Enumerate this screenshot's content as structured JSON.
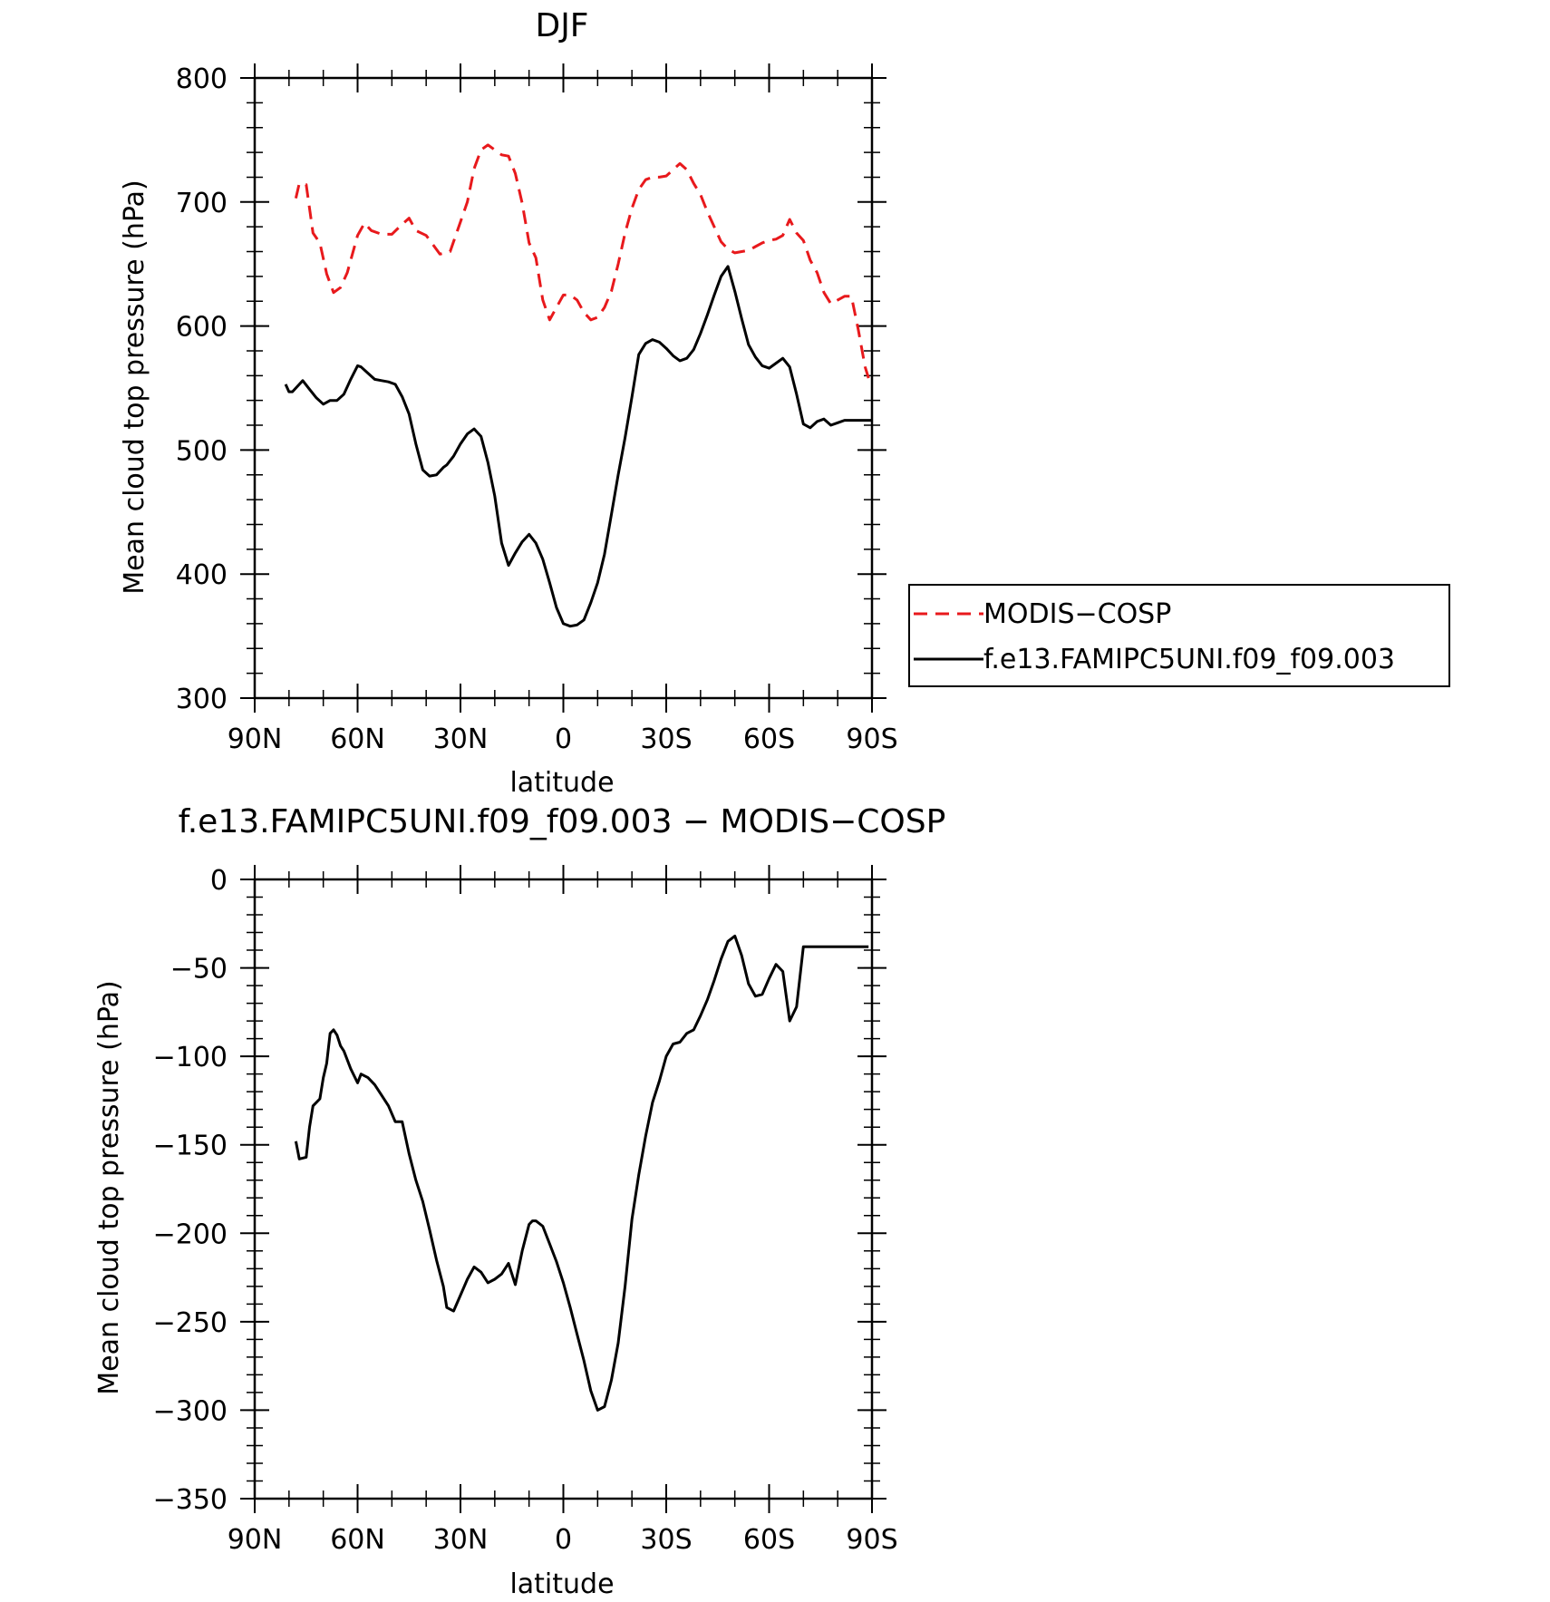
{
  "chart_data": [
    {
      "type": "line",
      "title": "DJF",
      "xlabel": "latitude",
      "ylabel": "Mean cloud top pressure (hPa)",
      "xlim": [
        -90,
        90
      ],
      "ylim": [
        300,
        800
      ],
      "x_ticks": [
        -90,
        -60,
        -30,
        0,
        30,
        60,
        90
      ],
      "x_tick_labels": [
        "90N",
        "60N",
        "30N",
        "0",
        "30S",
        "60S",
        "90S"
      ],
      "y_ticks": [
        300,
        400,
        500,
        600,
        700,
        800
      ],
      "y_tick_labels": [
        "300",
        "400",
        "500",
        "600",
        "700",
        "800"
      ],
      "grid": false,
      "legend": {
        "placement": "right",
        "entries": [
          "MODIS−COSP",
          "f.e13.FAMIPC5UNI.f09_f09.003"
        ]
      },
      "series": [
        {
          "name": "MODIS−COSP",
          "color": "#e8191c",
          "dash": "dashed",
          "x": [
            -78,
            -77,
            -75,
            -73,
            -71,
            -69,
            -67,
            -65,
            -63,
            -60,
            -58,
            -56,
            -53,
            -50,
            -47,
            -45,
            -43,
            -40,
            -36,
            -33,
            -30,
            -28,
            -26,
            -24,
            -22,
            -20,
            -18,
            -16,
            -14,
            -12,
            -10,
            -8,
            -6,
            -4,
            -2,
            0,
            2,
            4,
            6,
            8,
            10,
            12,
            14,
            16,
            18,
            20,
            22,
            24,
            26,
            28,
            30,
            32,
            34,
            36,
            38,
            40,
            42,
            44,
            46,
            48,
            50,
            52,
            54,
            56,
            58,
            60,
            62,
            64,
            66,
            68,
            70,
            72,
            74,
            76,
            78,
            80,
            82,
            84,
            86,
            88,
            89
          ],
          "y": [
            703,
            715,
            714,
            675,
            667,
            642,
            627,
            631,
            643,
            673,
            683,
            677,
            674,
            674,
            682,
            687,
            677,
            673,
            658,
            660,
            684,
            700,
            727,
            742,
            746,
            742,
            738,
            737,
            723,
            699,
            667,
            655,
            621,
            605,
            615,
            625,
            625,
            621,
            611,
            605,
            607,
            615,
            628,
            650,
            675,
            695,
            710,
            718,
            720,
            720,
            721,
            726,
            731,
            726,
            715,
            706,
            692,
            680,
            668,
            662,
            659,
            660,
            661,
            664,
            667,
            669,
            670,
            673,
            686,
            675,
            669,
            653,
            643,
            627,
            618,
            621,
            624,
            624,
            597,
            567,
            558
          ]
        },
        {
          "name": "f.e13.FAMIPC5UNI.f09_f09.003",
          "color": "#000000",
          "dash": "solid",
          "x": [
            -81,
            -80,
            -79,
            -77,
            -76,
            -74,
            -72,
            -70,
            -68,
            -66,
            -64,
            -62,
            -60,
            -59,
            -57,
            -55,
            -53,
            -51,
            -49,
            -47,
            -45,
            -43,
            -41,
            -39,
            -37,
            -35,
            -34,
            -32,
            -30,
            -28,
            -26,
            -24,
            -22,
            -20,
            -18,
            -16,
            -14,
            -12,
            -10,
            -8,
            -6,
            -4,
            -2,
            0,
            2,
            4,
            6,
            8,
            10,
            12,
            14,
            16,
            18,
            20,
            22,
            24,
            26,
            28,
            30,
            32,
            34,
            36,
            38,
            40,
            42,
            44,
            46,
            48,
            50,
            52,
            54,
            56,
            58,
            60,
            62,
            64,
            66,
            68,
            70,
            72,
            74,
            76,
            78,
            80,
            82,
            84,
            86,
            87,
            88,
            90
          ],
          "y": [
            553,
            547,
            547,
            553,
            556,
            549,
            542,
            537,
            540,
            540,
            545,
            557,
            568,
            567,
            562,
            557,
            556,
            555,
            553,
            543,
            529,
            505,
            484,
            479,
            480,
            486,
            488,
            495,
            505,
            513,
            517,
            511,
            490,
            463,
            425,
            407,
            417,
            426,
            432,
            425,
            412,
            393,
            373,
            360,
            358,
            359,
            363,
            377,
            393,
            416,
            448,
            480,
            510,
            543,
            577,
            586,
            589,
            587,
            582,
            576,
            572,
            574,
            581,
            594,
            609,
            625,
            640,
            648,
            628,
            606,
            585,
            575,
            568,
            566,
            570,
            574,
            567,
            545,
            521,
            518,
            523,
            525,
            520,
            522,
            524,
            524,
            524,
            524,
            524,
            524
          ]
        }
      ]
    },
    {
      "type": "line",
      "title": "f.e13.FAMIPC5UNI.f09_f09.003 − MODIS−COSP",
      "xlabel": "latitude",
      "ylabel": "Mean cloud top pressure (hPa)",
      "xlim": [
        -90,
        90
      ],
      "ylim": [
        -350,
        0
      ],
      "x_ticks": [
        -90,
        -60,
        -30,
        0,
        30,
        60,
        90
      ],
      "x_tick_labels": [
        "90N",
        "60N",
        "30N",
        "0",
        "30S",
        "60S",
        "90S"
      ],
      "y_ticks": [
        -350,
        -300,
        -250,
        -200,
        -150,
        -100,
        -50,
        0
      ],
      "y_tick_labels": [
        "−350",
        "−300",
        "−250",
        "−200",
        "−150",
        "−100",
        "−50",
        "0"
      ],
      "grid": false,
      "series": [
        {
          "color": "#000000",
          "dash": "solid",
          "x": [
            -78,
            -77,
            -75,
            -74,
            -73,
            -71,
            -70,
            -69,
            -68,
            -67,
            -66,
            -65,
            -64,
            -62,
            -60,
            -59,
            -57,
            -55,
            -53,
            -51,
            -49,
            -47,
            -45,
            -43,
            -41,
            -39,
            -37,
            -35,
            -34,
            -32,
            -30,
            -28,
            -26,
            -24,
            -22,
            -20,
            -18,
            -16,
            -14,
            -12,
            -10,
            -9,
            -8,
            -6,
            -4,
            -2,
            0,
            2,
            4,
            6,
            8,
            10,
            12,
            14,
            16,
            18,
            20,
            22,
            24,
            26,
            28,
            30,
            32,
            34,
            36,
            38,
            40,
            42,
            44,
            46,
            48,
            50,
            52,
            54,
            56,
            58,
            60,
            62,
            64,
            66,
            68,
            70,
            72,
            74,
            76,
            78,
            80,
            82,
            84,
            86,
            88,
            89
          ],
          "y": [
            -148,
            -158,
            -157,
            -140,
            -128,
            -124,
            -112,
            -104,
            -87,
            -85,
            -88,
            -94,
            -97,
            -107,
            -115,
            -110,
            -112,
            -116,
            -122,
            -128,
            -137,
            -137,
            -155,
            -170,
            -182,
            -198,
            -215,
            -230,
            -242,
            -244,
            -235,
            -226,
            -219,
            -222,
            -228,
            -226,
            -223,
            -217,
            -229,
            -210,
            -195,
            -193,
            -193,
            -196,
            -206,
            -216,
            -228,
            -242,
            -257,
            -272,
            -289,
            -300,
            -298,
            -283,
            -262,
            -230,
            -192,
            -167,
            -145,
            -126,
            -114,
            -100,
            -93,
            -92,
            -87,
            -85,
            -77,
            -68,
            -57,
            -45,
            -35,
            -32,
            -43,
            -59,
            -66,
            -65,
            -56,
            -48,
            -52,
            -80,
            -72,
            -38,
            -38,
            -38,
            -38,
            -38,
            -38,
            -38,
            -38,
            -38,
            -38,
            -38
          ]
        }
      ]
    }
  ]
}
